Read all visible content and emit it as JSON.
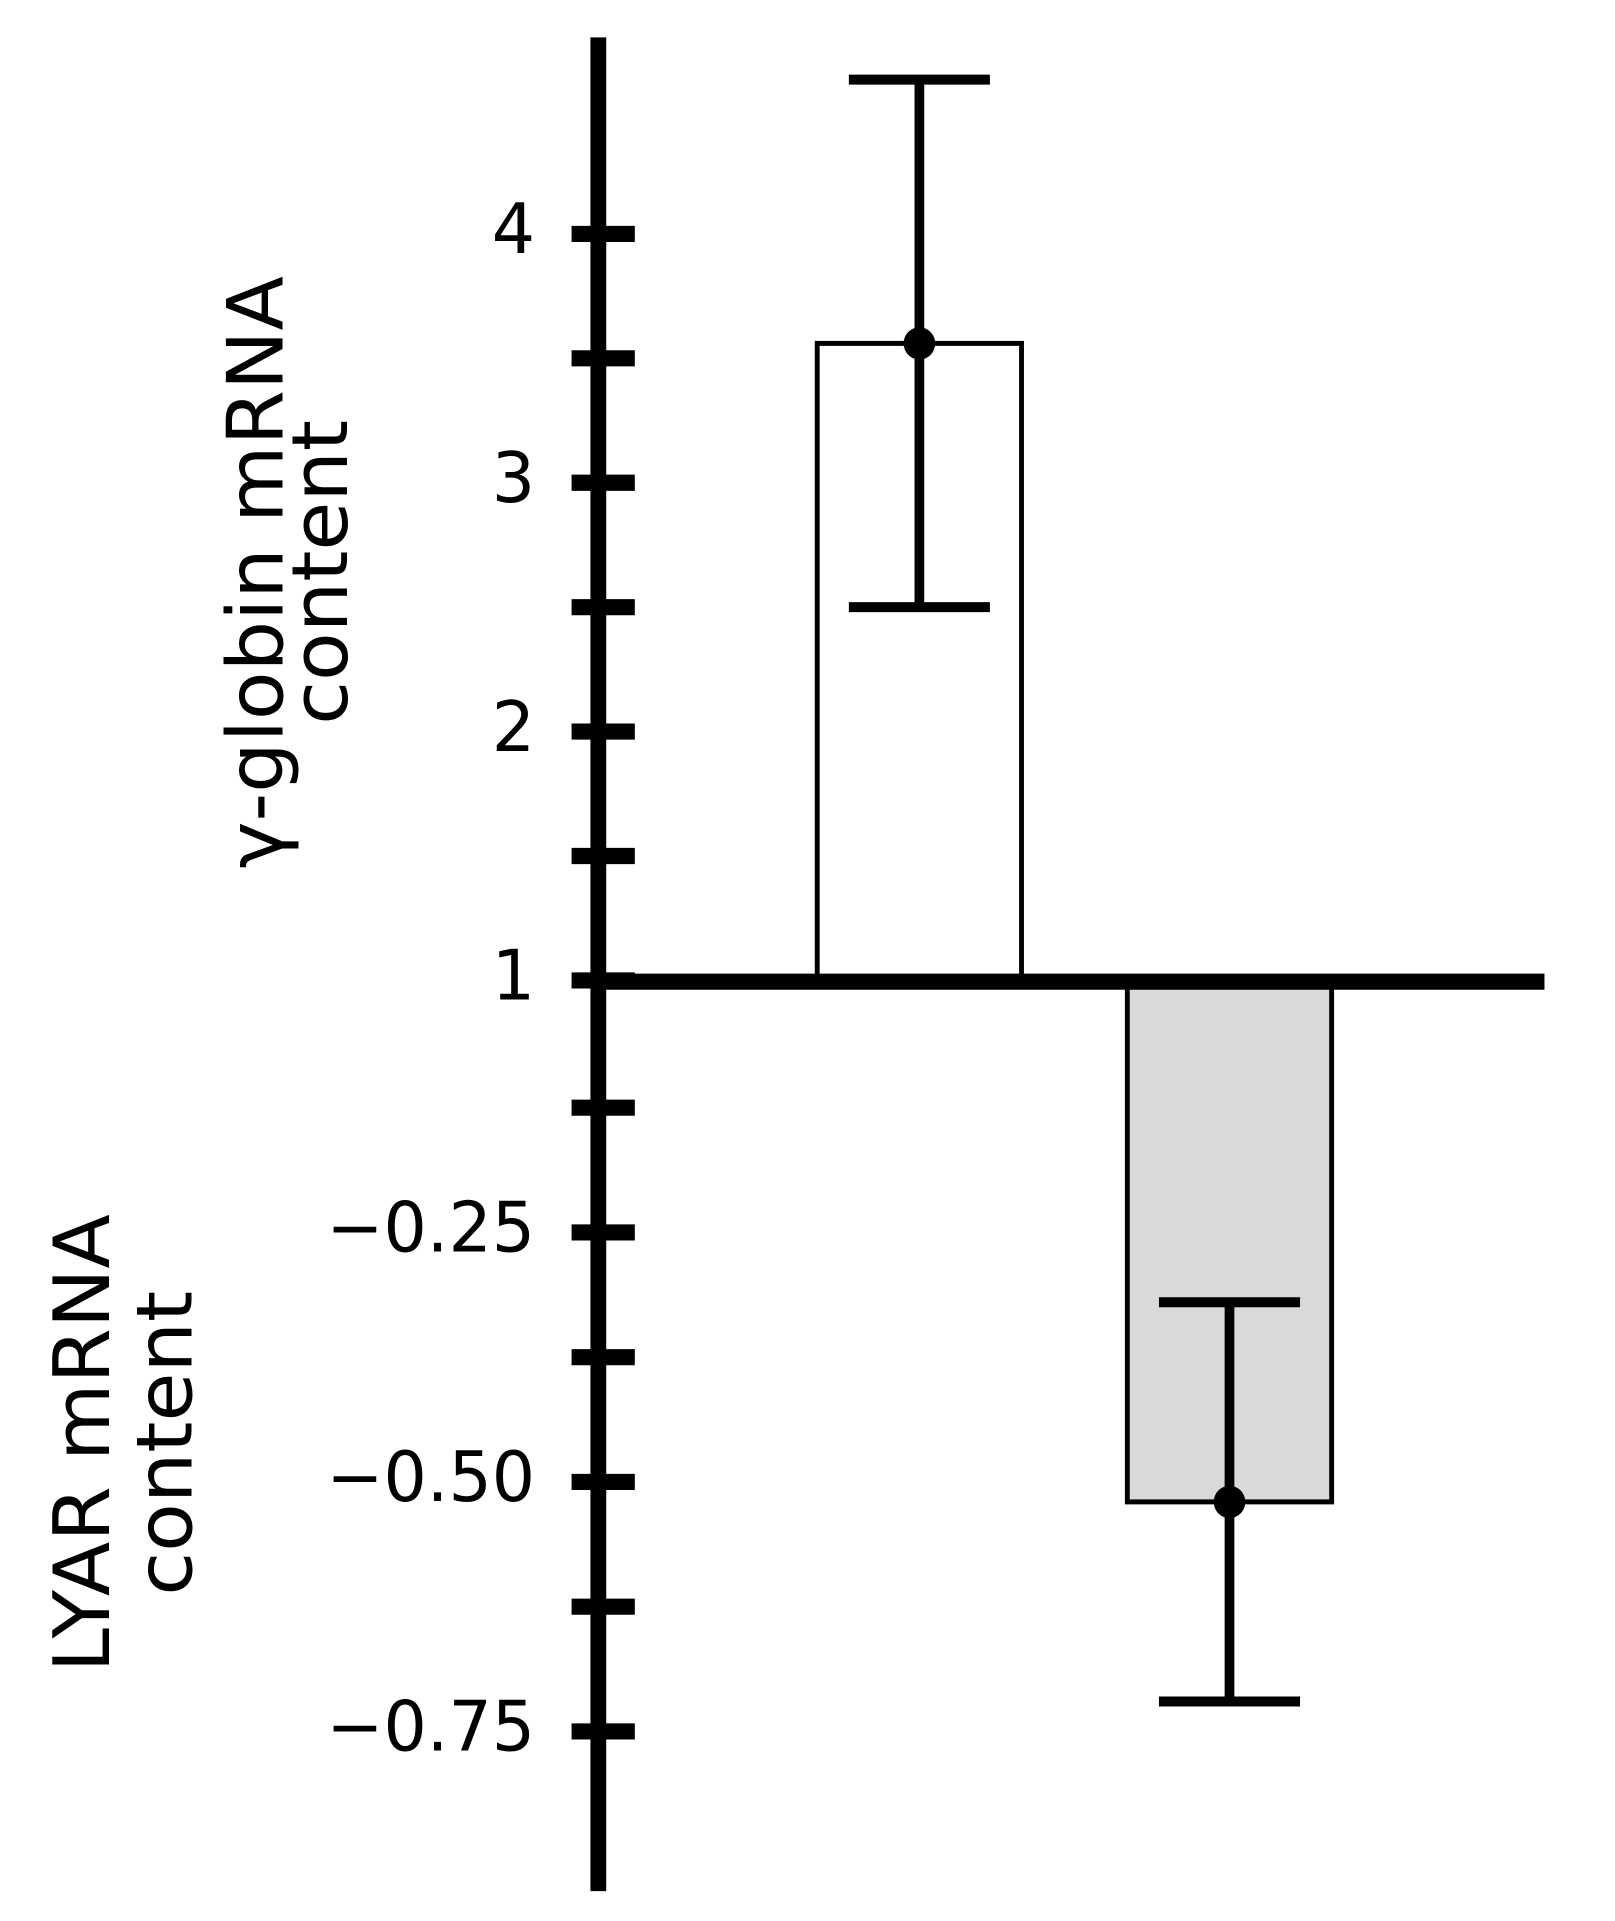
{
  "chart_data": [
    {
      "type": "bar",
      "ylabel": [
        "γ-globin mRNA",
        "content"
      ],
      "values": [
        3.56
      ],
      "errors": [
        1.06
      ],
      "color": "#ffffff",
      "ylim": [
        1,
        4.79
      ],
      "yticks": [
        1,
        2,
        3,
        4
      ],
      "minor_yticks": [
        1.5,
        2.5,
        3.5
      ]
    },
    {
      "type": "bar",
      "ylabel": [
        "LYAR mRNA",
        "content"
      ],
      "values": [
        -0.52
      ],
      "errors": [
        0.2
      ],
      "color": "#d9d9d9",
      "ylim": [
        -0.91,
        0
      ],
      "yticks": [
        {
          "value": -0.25,
          "label": "−0.25"
        },
        {
          "value": -0.5,
          "label": "−0.50"
        },
        {
          "value": -0.75,
          "label": "−0.75"
        }
      ],
      "minor_yticks": [
        -0.125,
        -0.375,
        -0.625
      ]
    }
  ]
}
